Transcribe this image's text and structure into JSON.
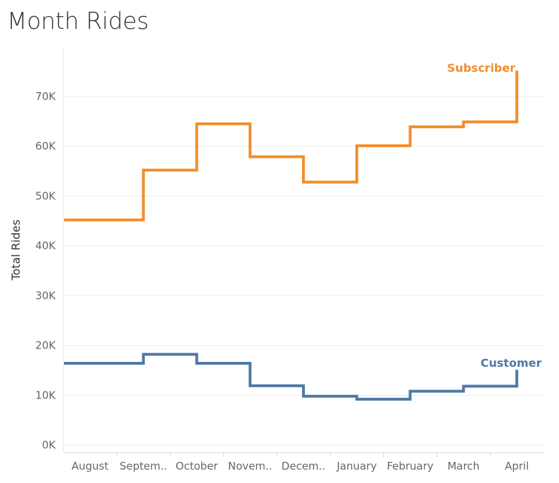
{
  "chart_data": {
    "type": "line",
    "title": "Month Rides",
    "xlabel": "",
    "ylabel": "Total Rides",
    "categories": [
      "August",
      "Septem..",
      "October",
      "Novem..",
      "Decem..",
      "January",
      "February",
      "March",
      "April"
    ],
    "yticks": [
      "0K",
      "10K",
      "20K",
      "30K",
      "40K",
      "50K",
      "60K",
      "70K"
    ],
    "ylim": [
      0,
      80000
    ],
    "grid": true,
    "step": true,
    "series": [
      {
        "name": "Subscriber",
        "color": "#f28e2b",
        "values": [
          45200,
          55200,
          64500,
          57900,
          52800,
          60100,
          63900,
          64900,
          75200
        ]
      },
      {
        "name": "Customer",
        "color": "#4e79a7",
        "values": [
          16400,
          18200,
          16400,
          11900,
          9800,
          9200,
          10800,
          11800,
          15100
        ]
      }
    ]
  }
}
